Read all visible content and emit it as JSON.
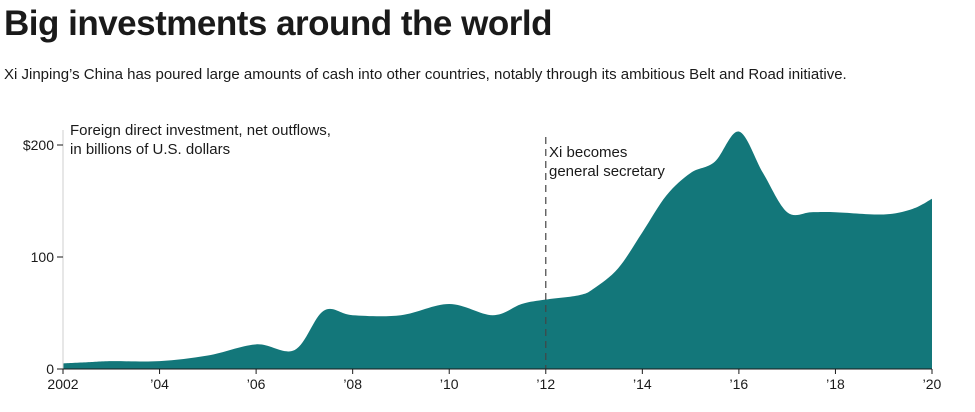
{
  "header": {
    "title": "Big investments around the world",
    "subtitle": "Xi Jinping’s China has poured large amounts of cash into other countries, notably through its ambitious Belt and Road initiative."
  },
  "chart_data": {
    "type": "area",
    "title": "Big investments around the world",
    "subtitle": "Xi Jinping’s China has poured large amounts of cash into other countries, notably through its ambitious Belt and Road initiative.",
    "series_label_lines": [
      "Foreign direct investment, net outflows,",
      "in billions of U.S. dollars"
    ],
    "x": [
      2002,
      2002.5,
      2003,
      2004,
      2005,
      2006,
      2006.8,
      2007.4,
      2008,
      2009,
      2010,
      2010.9,
      2011.5,
      2012,
      2012.7,
      2013,
      2013.5,
      2014,
      2014.5,
      2015,
      2015.5,
      2016,
      2016.5,
      2017,
      2017.5,
      2018,
      2019,
      2019.6,
      2020
    ],
    "y": [
      5,
      6,
      7,
      7,
      12,
      22,
      17,
      52,
      48,
      48,
      58,
      48,
      58,
      62,
      66,
      72,
      90,
      122,
      155,
      175,
      185,
      212,
      175,
      140,
      140,
      140,
      138,
      143,
      152
    ],
    "x_ticks": [
      {
        "value": 2002,
        "label": "2002"
      },
      {
        "value": 2004,
        "label": "’04"
      },
      {
        "value": 2006,
        "label": "’06"
      },
      {
        "value": 2008,
        "label": "’08"
      },
      {
        "value": 2010,
        "label": "’10"
      },
      {
        "value": 2012,
        "label": "’12"
      },
      {
        "value": 2014,
        "label": "’14"
      },
      {
        "value": 2016,
        "label": "’16"
      },
      {
        "value": 2018,
        "label": "’18"
      },
      {
        "value": 2020,
        "label": "’20"
      }
    ],
    "y_ticks": [
      {
        "value": 0,
        "label": "0"
      },
      {
        "value": 100,
        "label": "100"
      },
      {
        "value": 200,
        "label": "$200"
      }
    ],
    "xlim": [
      2002,
      2020
    ],
    "ylim": [
      0,
      225
    ],
    "grid": false,
    "legend": "none",
    "fill_color": "#13777a",
    "annotation": {
      "x": 2012,
      "label_lines": [
        "Xi becomes",
        "general secretary"
      ]
    }
  }
}
